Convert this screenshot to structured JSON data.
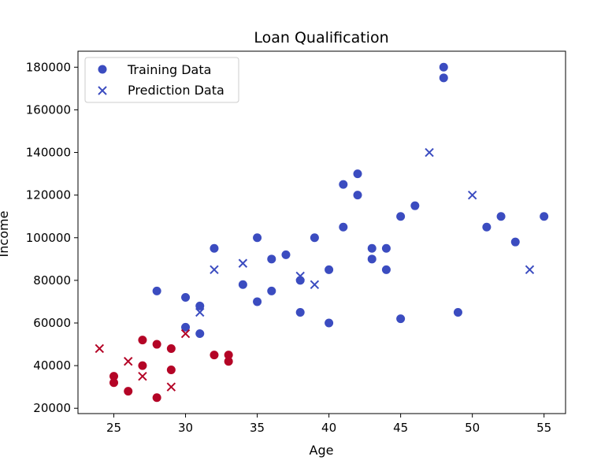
{
  "chart_data": {
    "type": "scatter",
    "title": "Loan Qualification",
    "xlabel": "Age",
    "ylabel": "Income",
    "xlim": [
      22.5,
      56.5
    ],
    "ylim": [
      17500,
      187500
    ],
    "xticks": [
      25,
      30,
      35,
      40,
      45,
      50,
      55
    ],
    "yticks": [
      20000,
      40000,
      60000,
      80000,
      100000,
      120000,
      140000,
      160000,
      180000
    ],
    "grid": false,
    "legend_position": "top-left",
    "colors": {
      "qualified": "#3b4cc0",
      "not_qualified": "#b40426"
    },
    "series": [
      {
        "name": "Training Data",
        "marker": "circle",
        "points": [
          {
            "x": 25,
            "y": 35000,
            "c": "not_qualified"
          },
          {
            "x": 25,
            "y": 32000,
            "c": "not_qualified"
          },
          {
            "x": 26,
            "y": 28000,
            "c": "not_qualified"
          },
          {
            "x": 27,
            "y": 52000,
            "c": "not_qualified"
          },
          {
            "x": 27,
            "y": 40000,
            "c": "not_qualified"
          },
          {
            "x": 28,
            "y": 50000,
            "c": "not_qualified"
          },
          {
            "x": 28,
            "y": 25000,
            "c": "not_qualified"
          },
          {
            "x": 28,
            "y": 75000,
            "c": "qualified"
          },
          {
            "x": 29,
            "y": 48000,
            "c": "not_qualified"
          },
          {
            "x": 29,
            "y": 38000,
            "c": "not_qualified"
          },
          {
            "x": 30,
            "y": 72000,
            "c": "qualified"
          },
          {
            "x": 30,
            "y": 58000,
            "c": "qualified"
          },
          {
            "x": 31,
            "y": 68000,
            "c": "qualified"
          },
          {
            "x": 31,
            "y": 55000,
            "c": "qualified"
          },
          {
            "x": 32,
            "y": 95000,
            "c": "qualified"
          },
          {
            "x": 32,
            "y": 45000,
            "c": "not_qualified"
          },
          {
            "x": 33,
            "y": 45000,
            "c": "not_qualified"
          },
          {
            "x": 33,
            "y": 42000,
            "c": "not_qualified"
          },
          {
            "x": 34,
            "y": 78000,
            "c": "qualified"
          },
          {
            "x": 35,
            "y": 100000,
            "c": "qualified"
          },
          {
            "x": 35,
            "y": 70000,
            "c": "qualified"
          },
          {
            "x": 36,
            "y": 90000,
            "c": "qualified"
          },
          {
            "x": 36,
            "y": 75000,
            "c": "qualified"
          },
          {
            "x": 37,
            "y": 92000,
            "c": "qualified"
          },
          {
            "x": 38,
            "y": 80000,
            "c": "qualified"
          },
          {
            "x": 38,
            "y": 65000,
            "c": "qualified"
          },
          {
            "x": 39,
            "y": 100000,
            "c": "qualified"
          },
          {
            "x": 40,
            "y": 85000,
            "c": "qualified"
          },
          {
            "x": 40,
            "y": 60000,
            "c": "qualified"
          },
          {
            "x": 41,
            "y": 125000,
            "c": "qualified"
          },
          {
            "x": 41,
            "y": 105000,
            "c": "qualified"
          },
          {
            "x": 42,
            "y": 130000,
            "c": "qualified"
          },
          {
            "x": 42,
            "y": 120000,
            "c": "qualified"
          },
          {
            "x": 43,
            "y": 95000,
            "c": "qualified"
          },
          {
            "x": 43,
            "y": 90000,
            "c": "qualified"
          },
          {
            "x": 44,
            "y": 95000,
            "c": "qualified"
          },
          {
            "x": 44,
            "y": 85000,
            "c": "qualified"
          },
          {
            "x": 45,
            "y": 110000,
            "c": "qualified"
          },
          {
            "x": 45,
            "y": 62000,
            "c": "qualified"
          },
          {
            "x": 46,
            "y": 115000,
            "c": "qualified"
          },
          {
            "x": 48,
            "y": 180000,
            "c": "qualified"
          },
          {
            "x": 48,
            "y": 175000,
            "c": "qualified"
          },
          {
            "x": 49,
            "y": 65000,
            "c": "qualified"
          },
          {
            "x": 51,
            "y": 105000,
            "c": "qualified"
          },
          {
            "x": 52,
            "y": 110000,
            "c": "qualified"
          },
          {
            "x": 53,
            "y": 98000,
            "c": "qualified"
          },
          {
            "x": 55,
            "y": 110000,
            "c": "qualified"
          }
        ]
      },
      {
        "name": "Prediction Data",
        "marker": "x",
        "points": [
          {
            "x": 24,
            "y": 48000,
            "c": "not_qualified"
          },
          {
            "x": 26,
            "y": 42000,
            "c": "not_qualified"
          },
          {
            "x": 27,
            "y": 35000,
            "c": "not_qualified"
          },
          {
            "x": 29,
            "y": 30000,
            "c": "not_qualified"
          },
          {
            "x": 30,
            "y": 55000,
            "c": "not_qualified"
          },
          {
            "x": 31,
            "y": 65000,
            "c": "qualified"
          },
          {
            "x": 32,
            "y": 85000,
            "c": "qualified"
          },
          {
            "x": 34,
            "y": 88000,
            "c": "qualified"
          },
          {
            "x": 38,
            "y": 82000,
            "c": "qualified"
          },
          {
            "x": 39,
            "y": 78000,
            "c": "qualified"
          },
          {
            "x": 47,
            "y": 140000,
            "c": "qualified"
          },
          {
            "x": 50,
            "y": 120000,
            "c": "qualified"
          },
          {
            "x": 54,
            "y": 85000,
            "c": "qualified"
          }
        ]
      }
    ]
  }
}
